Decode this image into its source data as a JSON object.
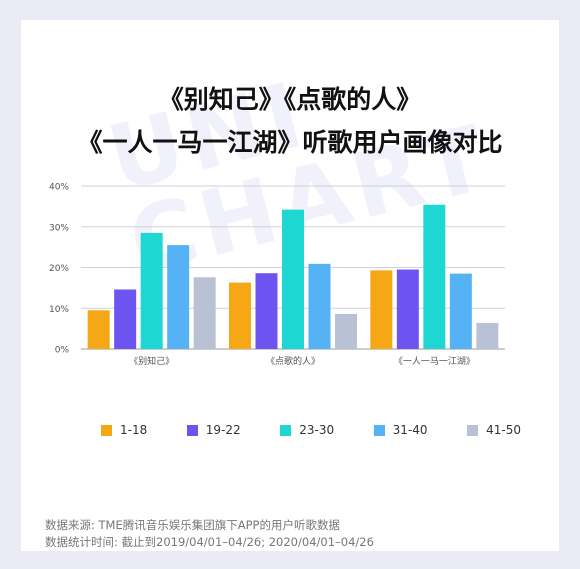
{
  "title_line1": "《别知己》《点歌的人》",
  "title_line2": "《一人一马一江湖》听歌用户画像对比",
  "watermark": "UNI CHART",
  "source_line1": "数据来源: TME腾讯音乐娱乐集团旗下APP的用户听歌数据",
  "source_line2": "数据统计时间: 截止到2019/04/01–04/26; 2020/04/01–04/26",
  "colors": [
    "#f5a716",
    "#6d54f0",
    "#1ed6d2",
    "#55b3f5",
    "#b8c2d4"
  ],
  "chart_data": {
    "type": "bar",
    "categories": [
      "《别知己》",
      "《点歌的人》",
      "《一人一马一江湖》"
    ],
    "series": [
      {
        "name": "1-18",
        "values": [
          9.5,
          16.3,
          19.3
        ]
      },
      {
        "name": "19-22",
        "values": [
          14.6,
          18.6,
          19.5
        ]
      },
      {
        "name": "23-30",
        "values": [
          28.5,
          34.2,
          35.4
        ]
      },
      {
        "name": "31-40",
        "values": [
          25.5,
          20.9,
          18.5
        ]
      },
      {
        "name": "41-50",
        "values": [
          17.6,
          8.6,
          6.4
        ]
      }
    ],
    "ylim": [
      0,
      40
    ],
    "yticks": [
      "0%",
      "10%",
      "20%",
      "30%",
      "40%"
    ],
    "grid": true,
    "legend_position": "bottom"
  }
}
